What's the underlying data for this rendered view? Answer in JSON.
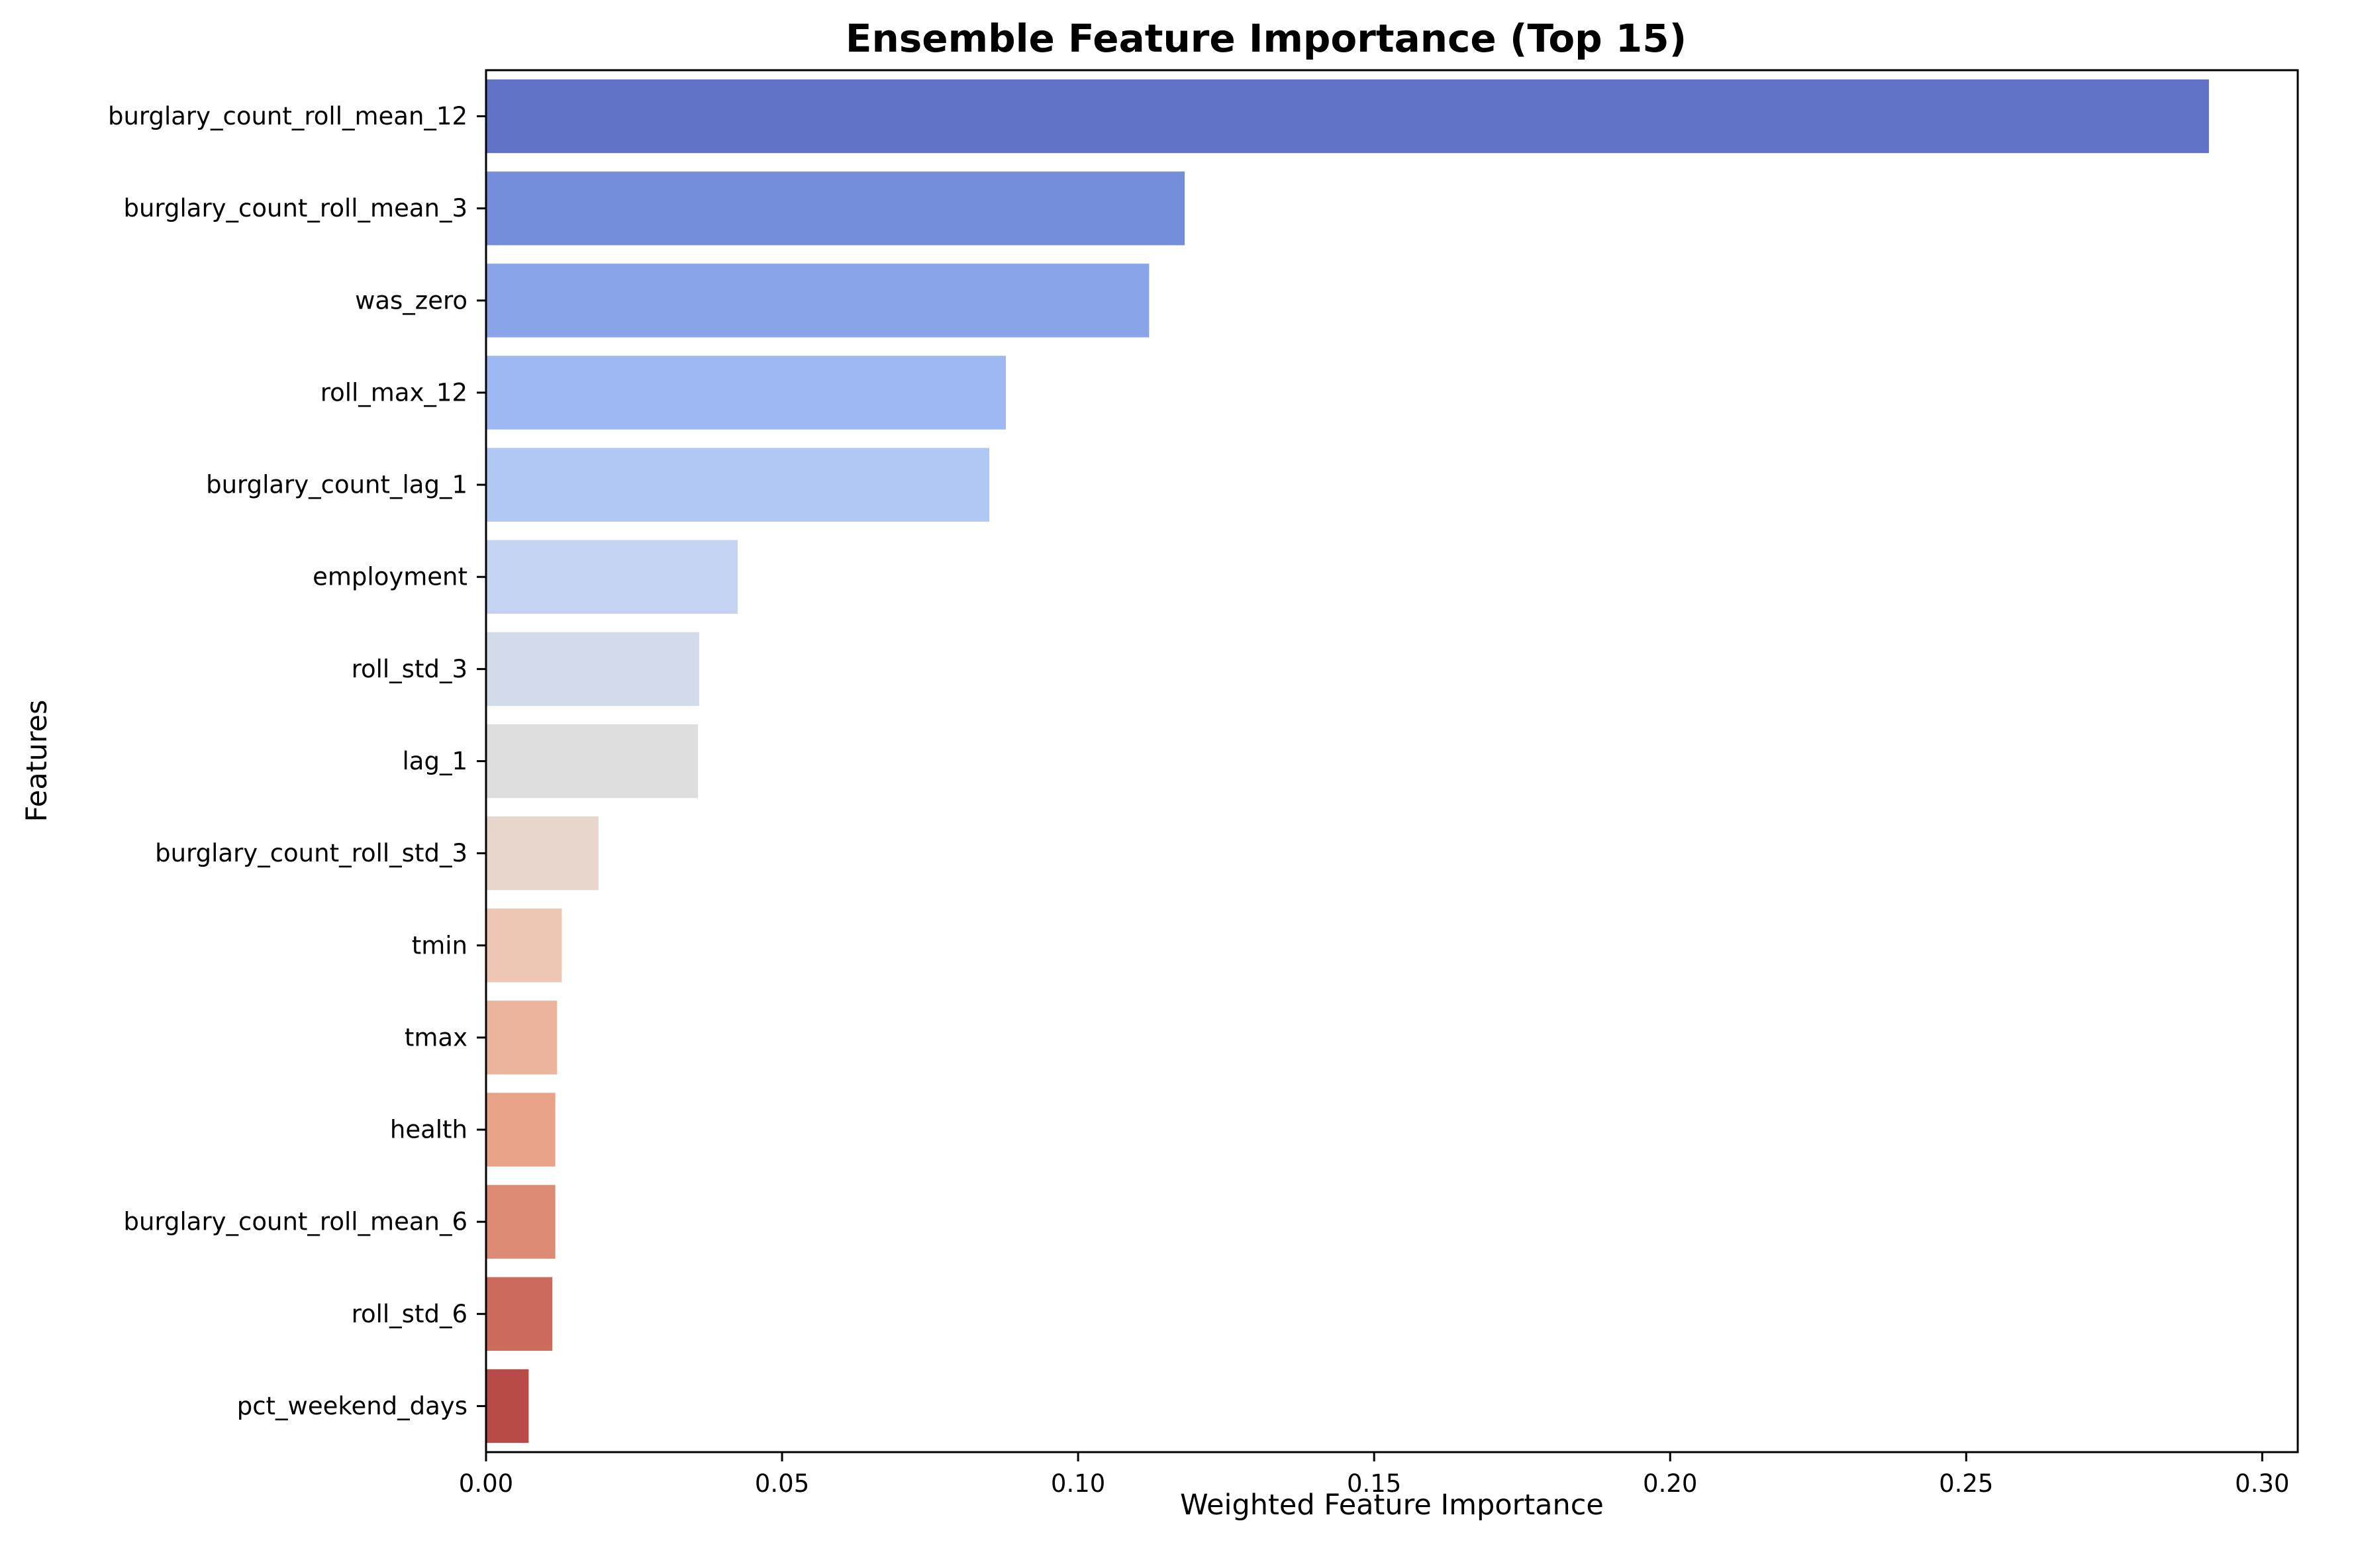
{
  "chart_data": {
    "type": "bar",
    "orientation": "horizontal",
    "title": "Ensemble Feature Importance (Top 15)",
    "xlabel": "Weighted Feature Importance",
    "ylabel": "Features",
    "xlim": [
      0,
      0.306
    ],
    "xticks": [
      0.0,
      0.05,
      0.1,
      0.15,
      0.2,
      0.25,
      0.3
    ],
    "xtick_labels": [
      "0.00",
      "0.05",
      "0.10",
      "0.15",
      "0.20",
      "0.25",
      "0.30"
    ],
    "grid": false,
    "categories": [
      "burglary_count_roll_mean_12",
      "burglary_count_roll_mean_3",
      "was_zero",
      "roll_max_12",
      "burglary_count_lag_1",
      "employment",
      "roll_std_3",
      "lag_1",
      "burglary_count_roll_std_3",
      "tmin",
      "tmax",
      "health",
      "burglary_count_roll_mean_6",
      "roll_std_6",
      "pct_weekend_days"
    ],
    "values": [
      0.291,
      0.118,
      0.112,
      0.0878,
      0.085,
      0.0425,
      0.036,
      0.0358,
      0.019,
      0.0128,
      0.012,
      0.0117,
      0.0117,
      0.0112,
      0.0072
    ],
    "colors": [
      "#6073c7",
      "#758edb",
      "#8aa4e8",
      "#9eb8f4",
      "#b1c7f4",
      "#c3d3f1",
      "#d1dbe9",
      "#dedede",
      "#e8d5cb",
      "#edc7b3",
      "#ecb49c",
      "#e7a287",
      "#dc8a73",
      "#cc6a5b",
      "#b84b47"
    ]
  }
}
